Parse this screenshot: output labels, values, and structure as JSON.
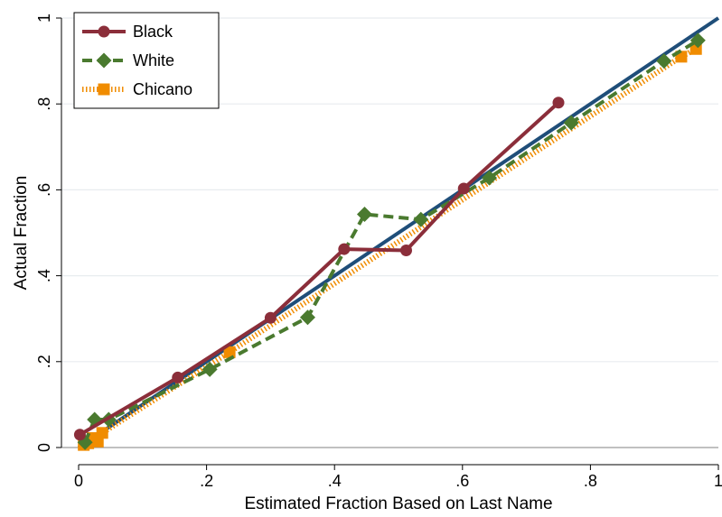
{
  "chart_data": {
    "type": "line",
    "title": "",
    "xlabel": "Estimated Fraction Based on Last Name",
    "ylabel": "Actual Fraction",
    "xlim": [
      0,
      1
    ],
    "ylim": [
      0,
      1
    ],
    "x_ticks": [
      {
        "value": 0,
        "label": "0"
      },
      {
        "value": 0.2,
        "label": ".2"
      },
      {
        "value": 0.4,
        "label": ".4"
      },
      {
        "value": 0.6,
        "label": ".6"
      },
      {
        "value": 0.8,
        "label": ".8"
      },
      {
        "value": 1,
        "label": "1"
      }
    ],
    "y_ticks": [
      {
        "value": 0,
        "label": "0"
      },
      {
        "value": 0.2,
        "label": ".2"
      },
      {
        "value": 0.4,
        "label": ".4"
      },
      {
        "value": 0.6,
        "label": ".6"
      },
      {
        "value": 0.8,
        "label": ".8"
      },
      {
        "value": 1,
        "label": "1"
      }
    ],
    "grid": true,
    "legend_position": "top-left",
    "reference_line": {
      "x": [
        0,
        1
      ],
      "y": [
        0,
        1
      ],
      "color": "#1f4e79"
    },
    "series": [
      {
        "name": "Black",
        "color": "#8b2e3a",
        "marker": "circle",
        "line_style": "solid",
        "x": [
          0.002,
          0.155,
          0.3,
          0.415,
          0.512,
          0.602,
          0.75
        ],
        "y": [
          0.03,
          0.163,
          0.302,
          0.462,
          0.459,
          0.603,
          0.803
        ]
      },
      {
        "name": "White",
        "color": "#4a7a2f",
        "marker": "diamond",
        "line_style": "dashed",
        "x": [
          0.01,
          0.025,
          0.047,
          0.205,
          0.358,
          0.447,
          0.535,
          0.642,
          0.77,
          0.915,
          0.968
        ],
        "y": [
          0.012,
          0.065,
          0.065,
          0.182,
          0.303,
          0.543,
          0.531,
          0.628,
          0.756,
          0.9,
          0.948
        ]
      },
      {
        "name": "Chicano",
        "color": "#f08c00",
        "marker": "square",
        "line_style": "dotted",
        "x": [
          0.008,
          0.015,
          0.022,
          0.03,
          0.037,
          0.236,
          0.942,
          0.965
        ],
        "y": [
          0.006,
          0.01,
          0.022,
          0.014,
          0.034,
          0.222,
          0.91,
          0.928
        ]
      }
    ]
  }
}
